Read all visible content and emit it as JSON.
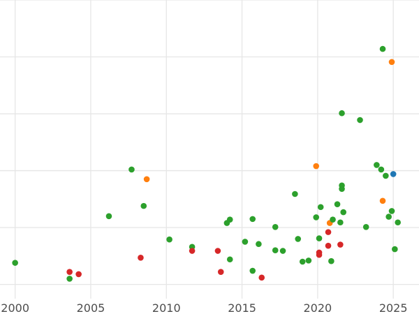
{
  "chart_data": {
    "type": "scatter",
    "title": "",
    "xlabel": "",
    "ylabel": "",
    "xlim": [
      1999.0,
      2026.7
    ],
    "ylim": [
      -0.25,
      5.0
    ],
    "x_ticks": [
      2000,
      2005,
      2010,
      2015,
      2020,
      2025
    ],
    "x_tick_labels": [
      "2000",
      "2005",
      "2010",
      "2015",
      "2020",
      "2025"
    ],
    "y_gridlines": [
      0,
      1,
      2,
      3,
      4,
      5
    ],
    "grid": true,
    "legend": "none",
    "colors": {
      "green": "#2ca02c",
      "red": "#d62728",
      "orange": "#ff7f0e",
      "blue": "#1f77b4"
    },
    "points": [
      {
        "x": 2000.0,
        "y": 0.38,
        "color": "green"
      },
      {
        "x": 2003.6,
        "y": 0.22,
        "color": "red"
      },
      {
        "x": 2003.6,
        "y": 0.1,
        "color": "green"
      },
      {
        "x": 2004.2,
        "y": 0.18,
        "color": "red"
      },
      {
        "x": 2006.2,
        "y": 1.2,
        "color": "green"
      },
      {
        "x": 2007.7,
        "y": 2.02,
        "color": "green"
      },
      {
        "x": 2008.3,
        "y": 0.47,
        "color": "red"
      },
      {
        "x": 2008.5,
        "y": 1.38,
        "color": "green"
      },
      {
        "x": 2008.7,
        "y": 1.85,
        "color": "orange"
      },
      {
        "x": 2010.2,
        "y": 0.79,
        "color": "green"
      },
      {
        "x": 2011.7,
        "y": 0.66,
        "color": "green"
      },
      {
        "x": 2011.7,
        "y": 0.59,
        "color": "red"
      },
      {
        "x": 2013.4,
        "y": 0.59,
        "color": "red"
      },
      {
        "x": 2013.6,
        "y": 0.22,
        "color": "red"
      },
      {
        "x": 2014.0,
        "y": 1.08,
        "color": "green"
      },
      {
        "x": 2014.2,
        "y": 1.14,
        "color": "green"
      },
      {
        "x": 2014.2,
        "y": 0.44,
        "color": "green"
      },
      {
        "x": 2015.2,
        "y": 0.75,
        "color": "green"
      },
      {
        "x": 2015.7,
        "y": 1.15,
        "color": "green"
      },
      {
        "x": 2015.7,
        "y": 0.24,
        "color": "green"
      },
      {
        "x": 2016.1,
        "y": 0.71,
        "color": "green"
      },
      {
        "x": 2016.3,
        "y": 0.12,
        "color": "red"
      },
      {
        "x": 2017.2,
        "y": 1.01,
        "color": "green"
      },
      {
        "x": 2017.2,
        "y": 0.6,
        "color": "green"
      },
      {
        "x": 2017.7,
        "y": 0.59,
        "color": "green"
      },
      {
        "x": 2018.5,
        "y": 1.59,
        "color": "green"
      },
      {
        "x": 2018.7,
        "y": 0.8,
        "color": "green"
      },
      {
        "x": 2019.0,
        "y": 0.4,
        "color": "green"
      },
      {
        "x": 2019.4,
        "y": 0.42,
        "color": "green"
      },
      {
        "x": 2019.9,
        "y": 2.08,
        "color": "orange"
      },
      {
        "x": 2019.9,
        "y": 1.18,
        "color": "green"
      },
      {
        "x": 2020.1,
        "y": 0.81,
        "color": "green"
      },
      {
        "x": 2020.1,
        "y": 0.56,
        "color": "red"
      },
      {
        "x": 2020.1,
        "y": 0.52,
        "color": "red"
      },
      {
        "x": 2020.2,
        "y": 1.36,
        "color": "green"
      },
      {
        "x": 2020.7,
        "y": 0.92,
        "color": "red"
      },
      {
        "x": 2020.7,
        "y": 0.68,
        "color": "red"
      },
      {
        "x": 2020.8,
        "y": 1.08,
        "color": "orange"
      },
      {
        "x": 2020.9,
        "y": 0.41,
        "color": "green"
      },
      {
        "x": 2021.0,
        "y": 1.14,
        "color": "green"
      },
      {
        "x": 2021.3,
        "y": 1.41,
        "color": "green"
      },
      {
        "x": 2021.5,
        "y": 1.09,
        "color": "green"
      },
      {
        "x": 2021.5,
        "y": 0.7,
        "color": "red"
      },
      {
        "x": 2021.6,
        "y": 3.01,
        "color": "green"
      },
      {
        "x": 2021.6,
        "y": 1.74,
        "color": "green"
      },
      {
        "x": 2021.6,
        "y": 1.68,
        "color": "green"
      },
      {
        "x": 2021.7,
        "y": 1.27,
        "color": "green"
      },
      {
        "x": 2022.8,
        "y": 2.89,
        "color": "green"
      },
      {
        "x": 2023.2,
        "y": 1.01,
        "color": "green"
      },
      {
        "x": 2023.9,
        "y": 2.1,
        "color": "green"
      },
      {
        "x": 2024.2,
        "y": 2.02,
        "color": "green"
      },
      {
        "x": 2024.3,
        "y": 4.14,
        "color": "green"
      },
      {
        "x": 2024.3,
        "y": 1.47,
        "color": "orange"
      },
      {
        "x": 2024.5,
        "y": 1.91,
        "color": "green"
      },
      {
        "x": 2024.7,
        "y": 1.19,
        "color": "green"
      },
      {
        "x": 2024.9,
        "y": 3.91,
        "color": "orange"
      },
      {
        "x": 2024.9,
        "y": 1.29,
        "color": "green"
      },
      {
        "x": 2025.0,
        "y": 1.94,
        "color": "blue"
      },
      {
        "x": 2025.1,
        "y": 0.62,
        "color": "green"
      },
      {
        "x": 2025.3,
        "y": 1.09,
        "color": "green"
      }
    ]
  }
}
